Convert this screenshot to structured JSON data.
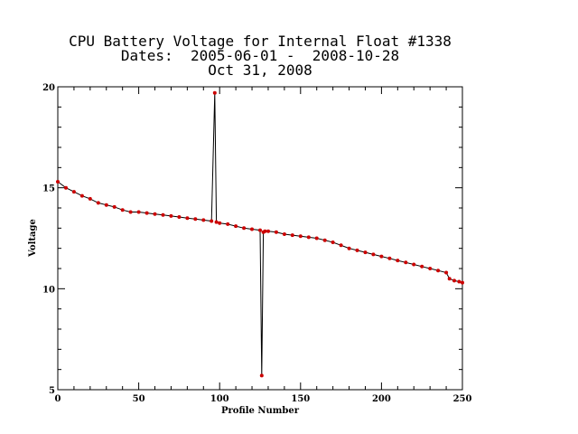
{
  "header": {
    "title": "CPU Battery Voltage for Internal Float #1338",
    "dates_line": "Dates:  2005-06-01 -  2008-10-28",
    "generated_date": "Oct 31, 2008"
  },
  "chart_data": {
    "type": "line",
    "title": "CPU Battery Voltage for Internal Float #1338",
    "subtitle": "Dates:  2005-06-01 -  2008-10-28",
    "xlabel": "Profile Number",
    "ylabel": "Voltage",
    "xlim": [
      0,
      250
    ],
    "ylim": [
      5,
      20
    ],
    "xticks": [
      0,
      50,
      100,
      150,
      200,
      250
    ],
    "yticks": [
      5,
      10,
      15,
      20
    ],
    "grid": false,
    "line_color": "#000000",
    "marker_color": "#cc0000",
    "series": [
      {
        "x": [
          0,
          5,
          10,
          15,
          20,
          25,
          30,
          35,
          40,
          45,
          50,
          55,
          60,
          65,
          70,
          75,
          80,
          85,
          90,
          95,
          97,
          98,
          100,
          105,
          110,
          115,
          120,
          125,
          126,
          127,
          128,
          130,
          135,
          140,
          145,
          150,
          155,
          160,
          165,
          170,
          175,
          180,
          185,
          190,
          195,
          200,
          205,
          210,
          215,
          220,
          225,
          230,
          235,
          240,
          242,
          245,
          248,
          250
        ],
        "y": [
          15.3,
          15.0,
          14.8,
          14.6,
          14.45,
          14.25,
          14.15,
          14.05,
          13.9,
          13.8,
          13.8,
          13.75,
          13.7,
          13.65,
          13.6,
          13.55,
          13.5,
          13.45,
          13.4,
          13.35,
          19.7,
          13.3,
          13.25,
          13.2,
          13.1,
          13.0,
          12.95,
          12.9,
          5.7,
          12.8,
          12.85,
          12.85,
          12.8,
          12.7,
          12.65,
          12.6,
          12.55,
          12.5,
          12.4,
          12.3,
          12.15,
          12.0,
          11.9,
          11.8,
          11.7,
          11.6,
          11.5,
          11.4,
          11.3,
          11.2,
          11.1,
          11.0,
          10.9,
          10.8,
          10.5,
          10.4,
          10.35,
          10.3
        ]
      }
    ]
  }
}
